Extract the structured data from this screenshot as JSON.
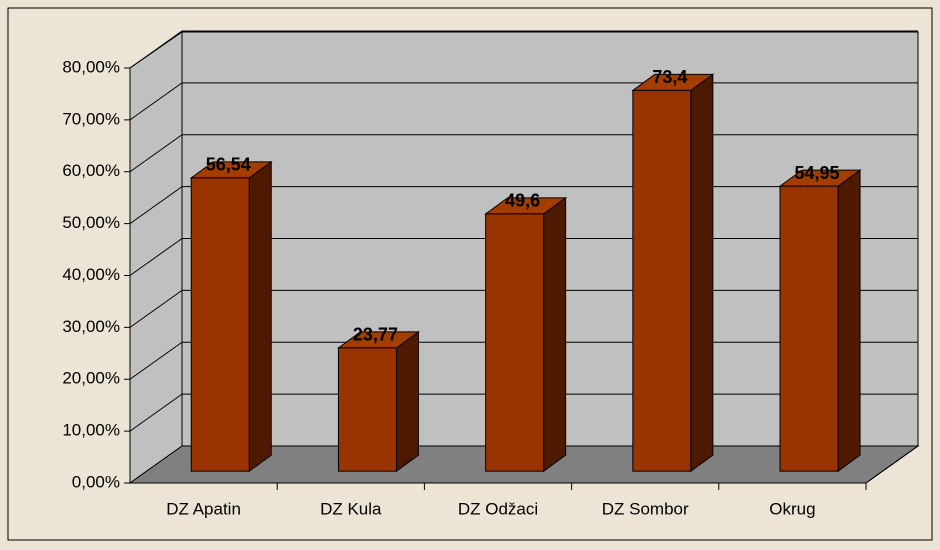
{
  "chart_data": {
    "type": "bar3d",
    "categories": [
      "DZ Apatin",
      "DZ Kula",
      "DZ Odžaci",
      "DZ Sombor",
      "Okrug"
    ],
    "values": [
      56.54,
      23.77,
      49.6,
      73.4,
      54.95
    ],
    "value_labels": [
      "56,54",
      "23,77",
      "49,6",
      "73,4",
      "54,95"
    ],
    "color": "#993300",
    "ylim": [
      0,
      80
    ],
    "yticks": [
      {
        "value": 0,
        "label": "0,00%"
      },
      {
        "value": 10,
        "label": "10,00%"
      },
      {
        "value": 20,
        "label": "20,00%"
      },
      {
        "value": 30,
        "label": "30,00%"
      },
      {
        "value": 40,
        "label": "40,00%"
      },
      {
        "value": 50,
        "label": "50,00%"
      },
      {
        "value": 60,
        "label": "60,00%"
      },
      {
        "value": 70,
        "label": "70,00%"
      },
      {
        "value": 80,
        "label": "80,00%"
      }
    ],
    "grid": true
  }
}
